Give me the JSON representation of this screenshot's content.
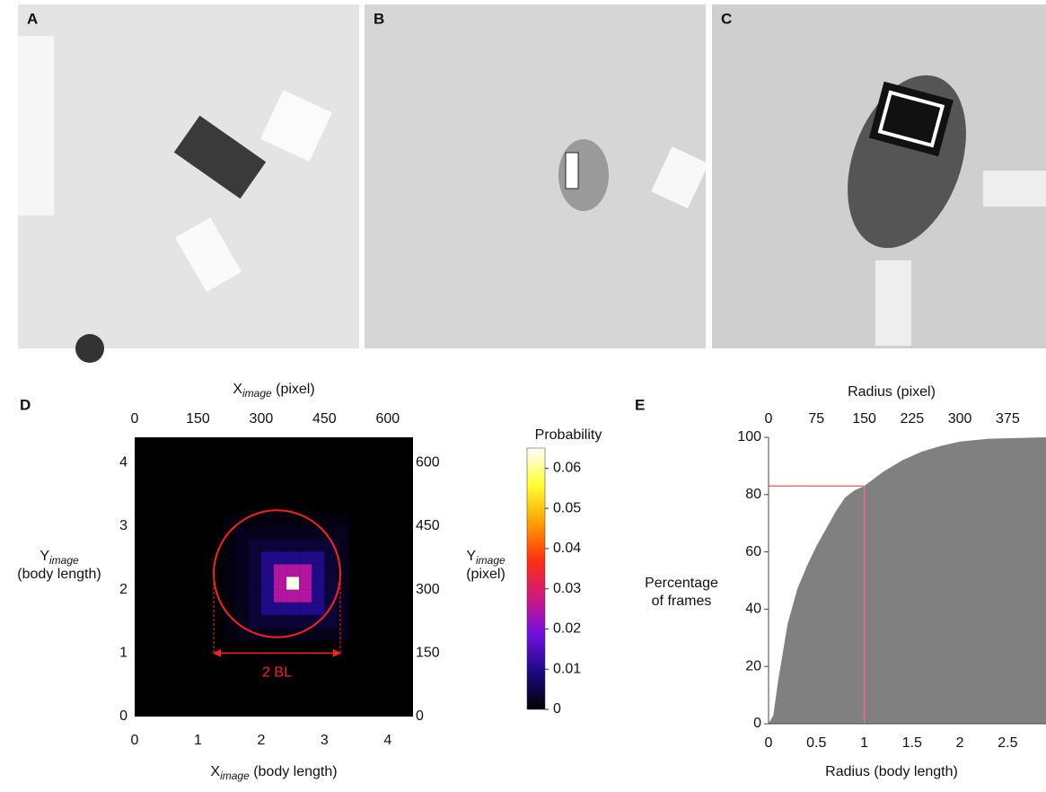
{
  "panels": [
    {
      "label": "A"
    },
    {
      "label": "B"
    },
    {
      "label": "C"
    }
  ],
  "chart_data": [
    {
      "type": "heatmap",
      "panel": "D",
      "x_label": {
        "main": "X",
        "sub": "image",
        "rest": " (body length)"
      },
      "x2_label": {
        "main": "X",
        "sub": "image",
        "rest": " (pixel)"
      },
      "y_label": {
        "main": "Y",
        "sub": "image",
        "rest": "(body length)"
      },
      "y2_label": {
        "main": "Y",
        "sub": "image",
        "rest": "(pixel)"
      },
      "xlim": [
        0,
        4.4
      ],
      "xticks": [
        0,
        1,
        2,
        3,
        4
      ],
      "ylim": [
        0,
        4.4
      ],
      "yticks": [
        0,
        1,
        2,
        3,
        4
      ],
      "x2lim": [
        0,
        660
      ],
      "x2ticks": [
        0,
        150,
        300,
        450,
        600
      ],
      "y2lim": [
        0,
        660
      ],
      "y2ticks": [
        0,
        150,
        300,
        450,
        600
      ],
      "x_bins": [
        1.4,
        1.6,
        1.8,
        2.0,
        2.2,
        2.4,
        2.6,
        2.8,
        3.0,
        3.2,
        3.4
      ],
      "y_bins": [
        1.2,
        1.4,
        1.6,
        1.8,
        2.0,
        2.2,
        2.4,
        2.6,
        2.8,
        3.0,
        3.2
      ],
      "z": [
        [
          0.001,
          0.002,
          0.002,
          0.002,
          0.002,
          0.002,
          0.002,
          0.002,
          0.002,
          0.002
        ],
        [
          0.001,
          0.002,
          0.004,
          0.004,
          0.004,
          0.004,
          0.004,
          0.004,
          0.004,
          0.002
        ],
        [
          0.001,
          0.002,
          0.004,
          0.01,
          0.01,
          0.01,
          0.01,
          0.01,
          0.004,
          0.002
        ],
        [
          0.001,
          0.002,
          0.004,
          0.01,
          0.025,
          0.025,
          0.025,
          0.01,
          0.004,
          0.002
        ],
        [
          0.001,
          0.002,
          0.004,
          0.01,
          0.025,
          0.064,
          0.025,
          0.01,
          0.004,
          0.002
        ],
        [
          0.001,
          0.002,
          0.004,
          0.01,
          0.025,
          0.025,
          0.025,
          0.01,
          0.004,
          0.002
        ],
        [
          0.001,
          0.002,
          0.004,
          0.01,
          0.01,
          0.01,
          0.01,
          0.01,
          0.004,
          0.002
        ],
        [
          0.001,
          0.002,
          0.004,
          0.004,
          0.004,
          0.004,
          0.004,
          0.004,
          0.004,
          0.002
        ],
        [
          0.001,
          0.002,
          0.002,
          0.002,
          0.002,
          0.002,
          0.002,
          0.002,
          0.002,
          0.002
        ],
        [
          0.001,
          0.001,
          0.001,
          0.001,
          0.001,
          0.001,
          0.001,
          0.001,
          0.001,
          0.001
        ]
      ],
      "zlim": [
        0,
        0.065
      ],
      "colormap": [
        "#000000",
        "#1a0a80",
        "#7010e0",
        "#d01880",
        "#ff3010",
        "#ffa000",
        "#ffff30",
        "#ffffff"
      ],
      "colorbar": {
        "title": "Probability",
        "ticks": [
          0,
          0.01,
          0.02,
          0.03,
          0.04,
          0.05,
          0.06
        ]
      },
      "circle": {
        "cx": 2.25,
        "cy": 2.25,
        "r": 1,
        "color": "#ff2020"
      },
      "span": {
        "text": "2 BL",
        "x0": 1.25,
        "x1": 3.25,
        "y": 1,
        "color": "#ff2020"
      }
    },
    {
      "type": "area",
      "panel": "E",
      "x_label": "Radius (body length)",
      "x2_label": "Radius (pixel)",
      "y_label": [
        "Percentage",
        "of frames"
      ],
      "xlim": [
        0,
        2.9
      ],
      "xticks": [
        0,
        0.5,
        1,
        1.5,
        2,
        2.5
      ],
      "x2lim": [
        0,
        435
      ],
      "x2ticks": [
        0,
        75,
        150,
        225,
        300,
        375
      ],
      "ylim": [
        0,
        100
      ],
      "yticks": [
        0,
        20,
        40,
        60,
        80,
        100
      ],
      "x": [
        0,
        0.05,
        0.1,
        0.15,
        0.2,
        0.3,
        0.4,
        0.5,
        0.6,
        0.7,
        0.8,
        0.9,
        1.0,
        1.2,
        1.4,
        1.6,
        1.8,
        2.0,
        2.3,
        2.9
      ],
      "values": [
        0,
        3,
        15,
        25,
        35,
        47,
        55,
        62,
        68,
        74,
        79,
        81.5,
        83,
        88,
        92,
        95,
        97,
        98.5,
        99.5,
        100
      ],
      "color": "#808080",
      "reference": {
        "x": 1,
        "y": 83,
        "color": "#f07070"
      }
    }
  ]
}
